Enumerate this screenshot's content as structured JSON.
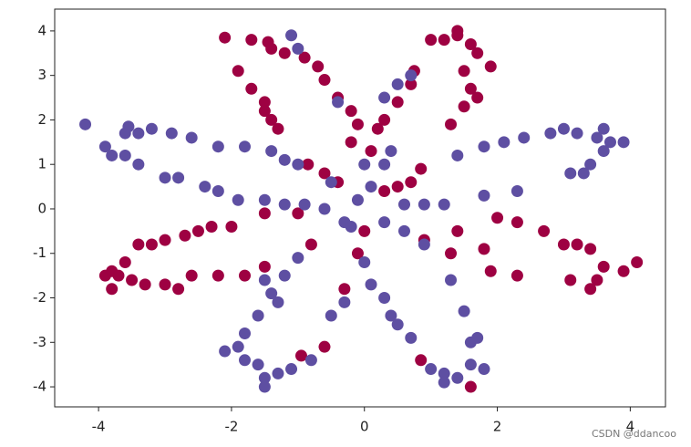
{
  "chart_data": {
    "type": "scatter",
    "xlim": [
      -4.66,
      4.53
    ],
    "ylim": [
      -4.45,
      4.49
    ],
    "xticks": [
      -4,
      -2,
      0,
      2,
      4
    ],
    "yticks": [
      -4,
      -3,
      -2,
      -1,
      0,
      1,
      2,
      3,
      4
    ],
    "watermark": "CSDN @ddancoo",
    "series": [
      {
        "color": "#9e0142",
        "x": [
          -2.1,
          -1.7,
          -1.45,
          -1.4,
          -1.2,
          -0.9,
          -0.7,
          -0.6,
          -0.4,
          -0.2,
          -0.1,
          -0.2,
          -1.9,
          -1.7,
          -1.5,
          -1.5,
          -1.4,
          -1.3,
          -0.85,
          -0.6,
          -0.4,
          0.1,
          0.2,
          0.3,
          0.5,
          0.7,
          0.75,
          1.0,
          1.2,
          1.4,
          1.6,
          1.7,
          1.9,
          1.5,
          1.6,
          1.7,
          1.5,
          1.3,
          1.4,
          -3.9,
          -3.8,
          -3.7,
          -3.6,
          -3.4,
          -3.2,
          -3.0,
          -2.7,
          -2.5,
          -2.3,
          -2.0,
          -1.5,
          -1.0,
          -3.5,
          -3.3,
          -3.0,
          -2.8,
          -2.6,
          -2.2,
          -1.8,
          -1.5,
          -0.8,
          -3.8,
          0.3,
          0.5,
          0.7,
          0.85,
          1.4,
          1.8,
          2.0,
          2.3,
          2.7,
          3.0,
          3.2,
          3.4,
          3.6,
          3.9,
          4.1,
          3.5,
          3.4,
          3.1,
          2.3,
          1.9,
          1.3,
          0.9,
          -0.1,
          -0.3,
          -0.6,
          -0.95,
          0.85,
          1.6,
          0
        ],
        "y": [
          3.85,
          3.8,
          3.75,
          3.6,
          3.5,
          3.4,
          3.2,
          2.9,
          2.5,
          2.2,
          1.9,
          1.5,
          3.1,
          2.7,
          2.4,
          2.2,
          2.0,
          1.8,
          1.0,
          0.8,
          0.6,
          1.3,
          1.8,
          2.0,
          2.4,
          2.8,
          3.1,
          3.8,
          3.8,
          4.0,
          3.7,
          3.5,
          3.2,
          3.1,
          2.7,
          2.5,
          2.3,
          1.9,
          3.9,
          -1.5,
          -1.4,
          -1.5,
          -1.2,
          -0.8,
          -0.8,
          -0.7,
          -0.6,
          -0.5,
          -0.4,
          -0.4,
          -0.1,
          -0.1,
          -1.6,
          -1.7,
          -1.7,
          -1.8,
          -1.5,
          -1.5,
          -1.5,
          -1.3,
          -0.8,
          -1.8,
          0.4,
          0.5,
          0.6,
          0.9,
          -0.5,
          -0.9,
          -0.2,
          -0.3,
          -0.5,
          -0.8,
          -0.8,
          -0.9,
          -1.3,
          -1.4,
          -1.2,
          -1.6,
          -1.8,
          -1.6,
          -1.5,
          -1.4,
          -1.0,
          -0.7,
          -1.0,
          -1.8,
          -3.1,
          -3.3,
          -3.4,
          -4.0,
          -0.5
        ]
      },
      {
        "color": "#5e4fa2",
        "x": [
          -4.2,
          -3.9,
          -3.8,
          -3.6,
          -3.4,
          -3.6,
          -3.4,
          -3.2,
          -2.9,
          -2.6,
          -2.2,
          -1.8,
          -1.4,
          -1.2,
          -1.0,
          -0.5,
          -3.0,
          -2.8,
          -2.4,
          -2.2,
          -1.9,
          -1.5,
          -1.2,
          -0.9,
          -0.6,
          -3.55,
          3.9,
          3.7,
          3.5,
          3.6,
          3.2,
          3.0,
          2.8,
          2.4,
          2.1,
          1.8,
          1.4,
          3.6,
          3.4,
          3.1,
          2.3,
          1.8,
          1.2,
          0.9,
          0.6,
          3.3,
          -1.1,
          -1.0,
          -0.4,
          0.3,
          0.5,
          0.7,
          0.4,
          0.3,
          0.1,
          0,
          -1.5,
          -1.4,
          -1.3,
          -1.2,
          -1.0,
          -1.6,
          -1.8,
          -1.9,
          -1.8,
          -1.6,
          -1.5,
          -1.3,
          -1.1,
          -0.8,
          -0.5,
          -0.3,
          0,
          0.1,
          0.3,
          0.4,
          0.5,
          0.7,
          1.0,
          1.2,
          1.4,
          1.6,
          1.8,
          1.6,
          1.7,
          1.5,
          1.3,
          0.9,
          0.6,
          0.3,
          -0.3,
          -0.2,
          1.2,
          -2.1,
          -1.5,
          -0.1
        ],
        "y": [
          1.9,
          1.4,
          1.2,
          1.2,
          1.0,
          1.7,
          1.7,
          1.8,
          1.7,
          1.6,
          1.4,
          1.4,
          1.3,
          1.1,
          1.0,
          0.6,
          0.7,
          0.7,
          0.5,
          0.4,
          0.2,
          0.2,
          0.1,
          0.1,
          0,
          1.85,
          1.5,
          1.5,
          1.6,
          1.8,
          1.7,
          1.8,
          1.7,
          1.6,
          1.5,
          1.4,
          1.2,
          1.3,
          1.0,
          0.8,
          0.4,
          0.3,
          0.1,
          0.1,
          0.1,
          0.8,
          3.9,
          3.6,
          2.4,
          2.5,
          2.8,
          3.0,
          1.3,
          1.0,
          0.5,
          1.0,
          -1.6,
          -1.9,
          -2.1,
          -1.5,
          -1.1,
          -2.4,
          -2.8,
          -3.1,
          -3.4,
          -3.5,
          -3.8,
          -3.7,
          -3.6,
          -3.4,
          -2.4,
          -2.1,
          -1.2,
          -1.7,
          -2.0,
          -2.4,
          -2.6,
          -2.9,
          -3.6,
          -3.7,
          -3.8,
          -3.5,
          -3.6,
          -3.0,
          -2.9,
          -2.3,
          -1.6,
          -0.8,
          -0.5,
          -0.3,
          -0.3,
          -0.4,
          -3.9,
          -3.2,
          -4.0,
          0.2
        ]
      }
    ]
  }
}
